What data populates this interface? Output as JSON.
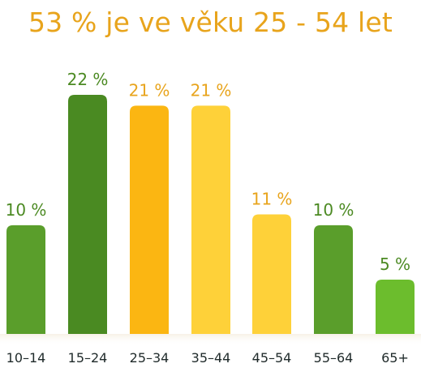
{
  "title": "53 % je ve věku 25 - 54 let",
  "chart_data": {
    "type": "bar",
    "title": "53 % je ve věku 25 - 54 let",
    "categories": [
      "10–14",
      "15–24",
      "25–34",
      "35–44",
      "45–54",
      "55–64",
      "65+"
    ],
    "values": [
      10,
      22,
      21,
      21,
      11,
      10,
      5
    ],
    "value_labels": [
      "10 %",
      "22 %",
      "21 %",
      "21 %",
      "11 %",
      "10 %",
      "5 %"
    ],
    "bar_colors": [
      "#5a9e2b",
      "#4a8a22",
      "#fbb612",
      "#fed139",
      "#fed139",
      "#5a9e2b",
      "#6cbd2d"
    ],
    "label_colors": [
      "#4c8a23",
      "#4c8a23",
      "#e8a41c",
      "#e8a41c",
      "#e8a41c",
      "#4c8a23",
      "#4c8a23"
    ],
    "title_color": "#e8a41c",
    "ylim": [
      0,
      22
    ],
    "grid": false,
    "legend": "none"
  }
}
